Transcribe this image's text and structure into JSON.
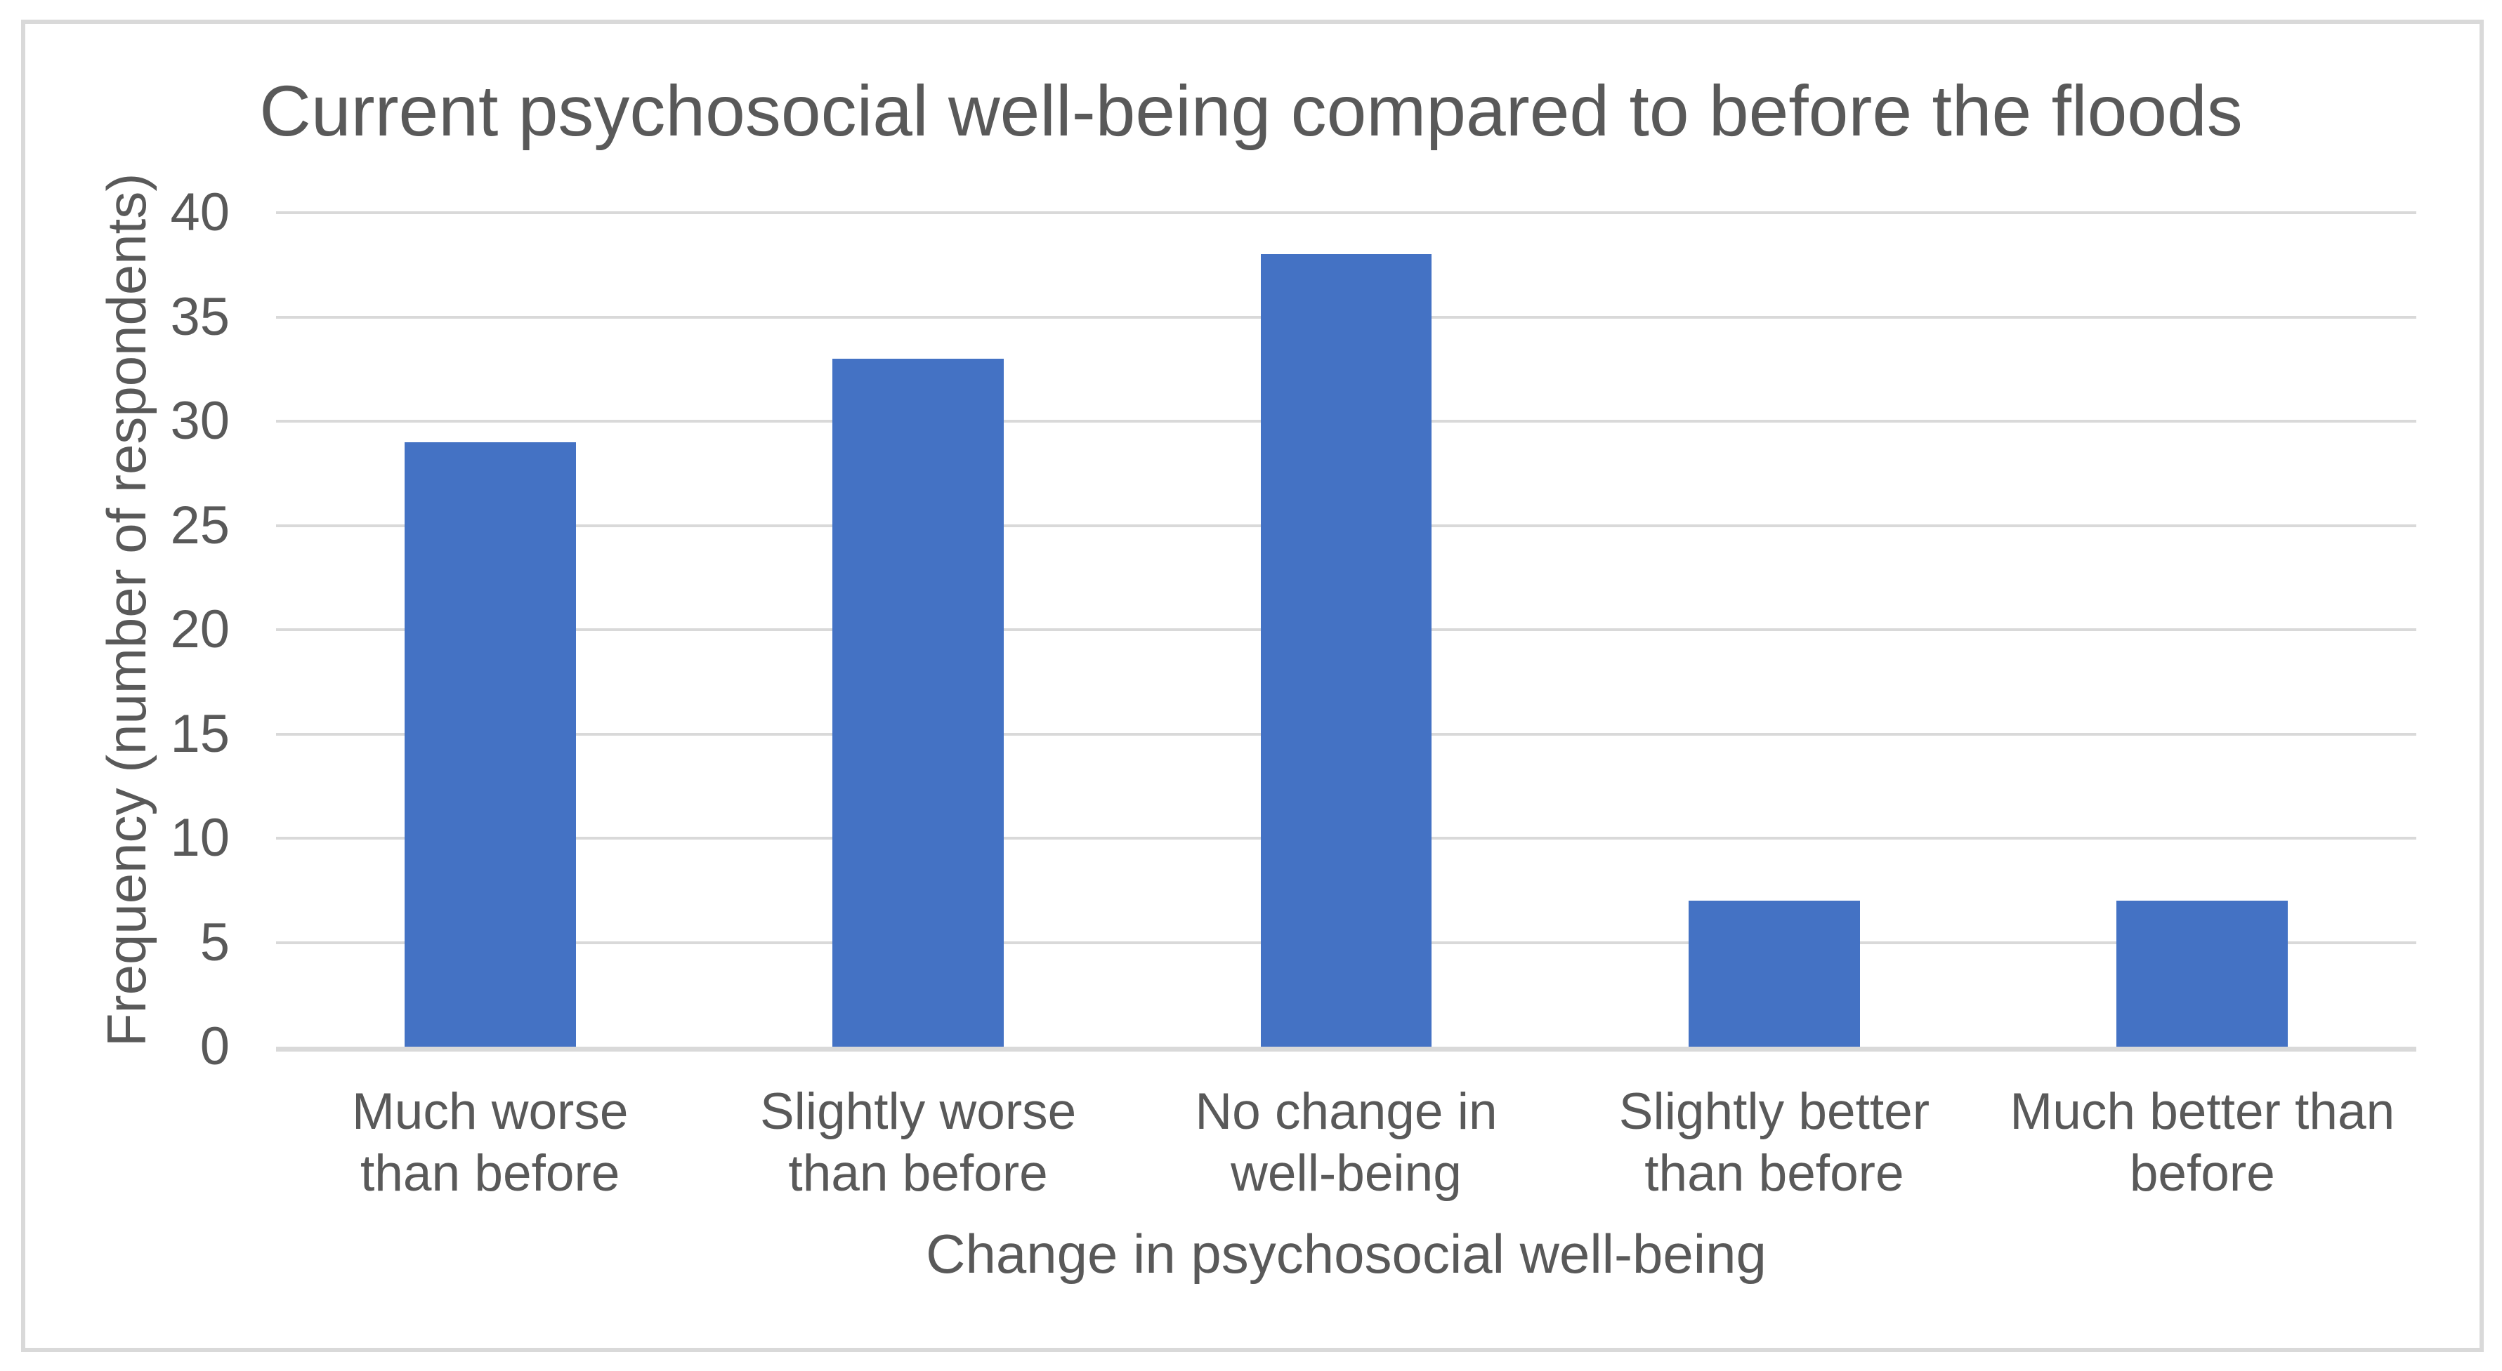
{
  "window": {
    "background_color": "#ffffff",
    "border_color": "#d9d9d9"
  },
  "chart_data": {
    "type": "bar",
    "title": "Current psychosocial well-being compared to before the floods",
    "categories": [
      "Much worse than before",
      "Slightly worse than before",
      "No change in well-being",
      "Slightly better than before",
      "Much better than before"
    ],
    "values": [
      29,
      33,
      38,
      7,
      7
    ],
    "xlabel": "Change in psychosocial well-being",
    "ylabel": "Frequency (number of respondents)",
    "ylim": [
      0,
      40
    ],
    "yticks": [
      0,
      5,
      10,
      15,
      20,
      25,
      30,
      35,
      40
    ],
    "grid": "horizontal",
    "legend_position": "none",
    "bar_color": "#4472c4",
    "gridline_color": "#d9d9d9",
    "axis_line_color": "#d9d9d9",
    "text_color": "#595959"
  }
}
